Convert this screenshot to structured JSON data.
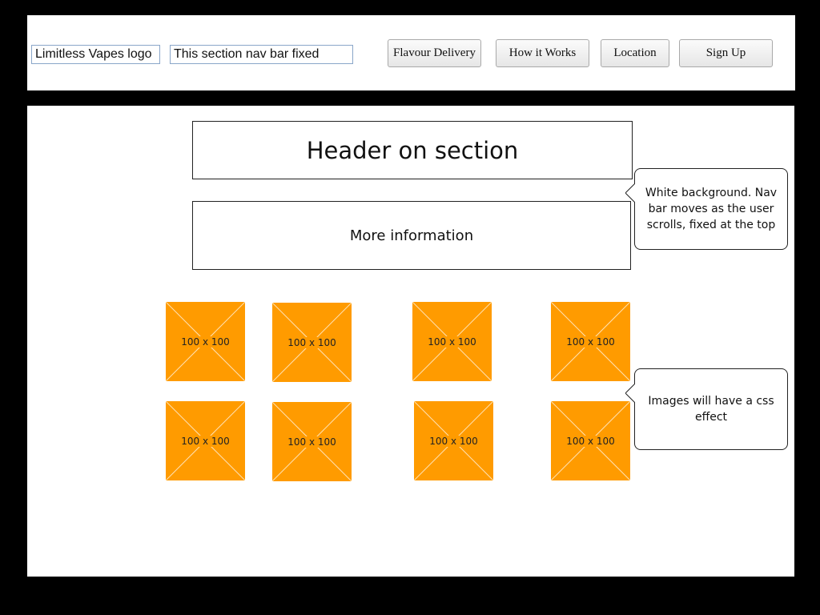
{
  "nav": {
    "logo_text": "Limitless Vapes logo",
    "note_text": "This section nav bar fixed",
    "buttons": [
      "Flavour Delivery",
      "How it Works",
      "Location",
      "Sign Up"
    ]
  },
  "content": {
    "header_text": "Header on section",
    "info_text": "More information",
    "callout_nav": "White background. Nav bar moves as the user scrolls, fixed at the top",
    "callout_images": "Images will have a css effect",
    "placeholders": [
      "100 x 100",
      "100 x 100",
      "100 x 100",
      "100 x 100",
      "100 x 100",
      "100 x 100",
      "100 x 100",
      "100 x 100"
    ]
  },
  "colors": {
    "placeholder": "#ff9b00",
    "background": "#000000",
    "panel": "#ffffff"
  }
}
